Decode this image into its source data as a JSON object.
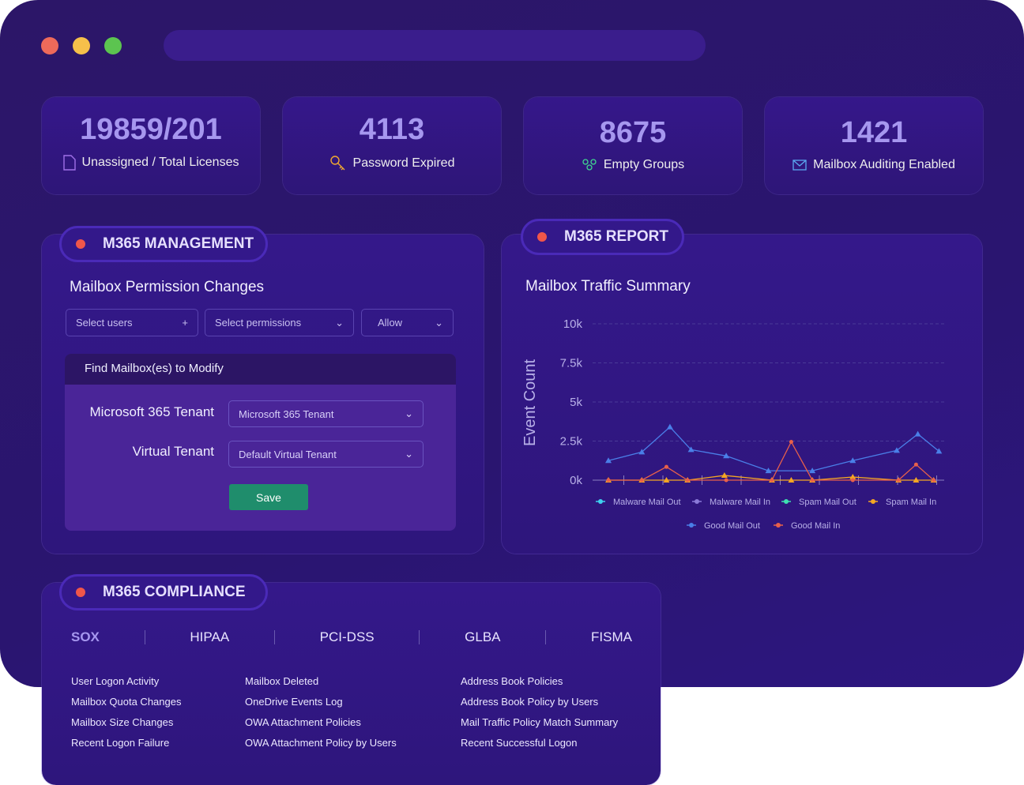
{
  "stats": [
    {
      "value": "19859/201",
      "label": "Unassigned / Total Licenses",
      "icon": "document-icon"
    },
    {
      "value": "4113",
      "label": "Password Expired",
      "icon": "key-icon"
    },
    {
      "value": "8675",
      "label": "Empty Groups",
      "icon": "group-icon"
    },
    {
      "value": "1421",
      "label": "Mailbox Auditing Enabled",
      "icon": "mail-icon"
    }
  ],
  "management": {
    "title": "M365 MANAGEMENT",
    "heading": "Mailbox Permission Changes",
    "select_users": "Select users",
    "select_permissions": "Select permissions",
    "allow": "Allow",
    "find_header": "Find Mailbox(es) to Modify",
    "tenant_label": "Microsoft 365 Tenant",
    "tenant_value": "Microsoft 365 Tenant",
    "virtual_label": "Virtual Tenant",
    "virtual_value": "Default Virtual Tenant",
    "save": "Save"
  },
  "report": {
    "title": "M365 REPORT",
    "heading": "Mailbox Traffic Summary"
  },
  "chart_data": {
    "type": "line",
    "title": "Mailbox Traffic Summary",
    "ylabel": "Event Count",
    "xlabel": "",
    "ylim": [
      0,
      10000
    ],
    "xlim": [
      0,
      20
    ],
    "yticks": [
      "0k",
      "2.5k",
      "5k",
      "7.5k",
      "10k"
    ],
    "ytick_values": [
      0,
      2500,
      5000,
      7500,
      10000
    ],
    "grid": true,
    "legend": "bottom",
    "series": [
      {
        "name": "Malware Mail Out",
        "color": "#3fd0f0",
        "marker": "circle",
        "x": [],
        "y": []
      },
      {
        "name": "Malware Mail In",
        "color": "#8a7ad8",
        "marker": "diamond",
        "x": [],
        "y": []
      },
      {
        "name": "Spam Mail Out",
        "color": "#3ee0b0",
        "marker": "square",
        "x": [],
        "y": []
      },
      {
        "name": "Spam Mail In",
        "color": "#f5a623",
        "marker": "triangle",
        "x": [
          0.9,
          2.8,
          4.2,
          5.4,
          7.5,
          10.2,
          11.3,
          12.5,
          14.8,
          17.4,
          18.4,
          19.4
        ],
        "y": [
          0,
          0,
          0,
          0,
          300,
          0,
          0,
          0,
          200,
          0,
          0,
          0
        ]
      },
      {
        "name": "Good Mail Out",
        "color": "#4a7fe8",
        "marker": "triangle",
        "x": [
          0.9,
          2.8,
          4.4,
          5.6,
          7.6,
          10.0,
          12.5,
          14.8,
          17.3,
          18.5,
          19.7
        ],
        "y": [
          1250,
          1800,
          3400,
          1950,
          1550,
          600,
          600,
          1250,
          1900,
          2950,
          1850
        ]
      },
      {
        "name": "Good Mail In",
        "color": "#e8604a",
        "marker": "circle",
        "x": [
          0.9,
          2.8,
          4.2,
          5.4,
          7.6,
          10.2,
          11.3,
          12.5,
          14.8,
          17.4,
          18.4,
          19.4
        ],
        "y": [
          0,
          0,
          850,
          0,
          0,
          0,
          2450,
          0,
          0,
          0,
          1000,
          0
        ]
      }
    ]
  },
  "compliance": {
    "title": "M365 COMPLIANCE",
    "tabs": [
      "SOX",
      "HIPAA",
      "PCI-DSS",
      "GLBA",
      "FISMA"
    ],
    "columns": [
      [
        "User Logon Activity",
        "Mailbox Quota Changes",
        "Mailbox Size Changes",
        "Recent Logon Failure"
      ],
      [
        "Mailbox Deleted",
        "OneDrive Events Log",
        "OWA Attachment Policies",
        "OWA Attachment Policy by Users"
      ],
      [
        "Address Book Policies",
        "Address Book Policy by Users",
        "Mail Traffic Policy Match Summary",
        "Recent Successful Logon"
      ]
    ]
  }
}
